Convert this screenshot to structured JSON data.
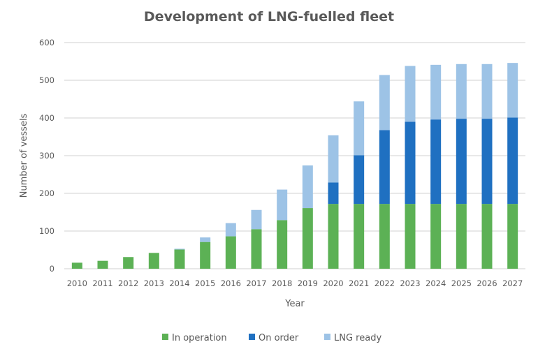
{
  "chart_data": {
    "type": "bar",
    "stacked": true,
    "title": "Development of LNG-fuelled fleet",
    "xlabel": "Year",
    "ylabel": "Number of vessels",
    "ylim": [
      0,
      600
    ],
    "yticks": [
      0,
      100,
      200,
      300,
      400,
      500,
      600
    ],
    "grid": true,
    "legend_position": "bottom",
    "categories": [
      "2010",
      "2011",
      "2012",
      "2013",
      "2014",
      "2015",
      "2016",
      "2017",
      "2018",
      "2019",
      "2020",
      "2021",
      "2022",
      "2023",
      "2024",
      "2025",
      "2026",
      "2027"
    ],
    "series": [
      {
        "name": "In operation",
        "color": "#5cb155",
        "values": [
          16,
          21,
          31,
          42,
          51,
          71,
          86,
          105,
          129,
          161,
          172,
          172,
          172,
          172,
          172,
          172,
          172,
          172
        ]
      },
      {
        "name": "On order",
        "color": "#1f70c1",
        "values": [
          0,
          0,
          0,
          0,
          0,
          0,
          0,
          0,
          0,
          0,
          57,
          129,
          196,
          218,
          224,
          226,
          226,
          229
        ]
      },
      {
        "name": "LNG ready",
        "color": "#9dc3e6",
        "values": [
          0,
          0,
          0,
          0,
          2,
          12,
          35,
          51,
          81,
          113,
          125,
          143,
          146,
          148,
          145,
          145,
          145,
          145
        ]
      }
    ]
  }
}
